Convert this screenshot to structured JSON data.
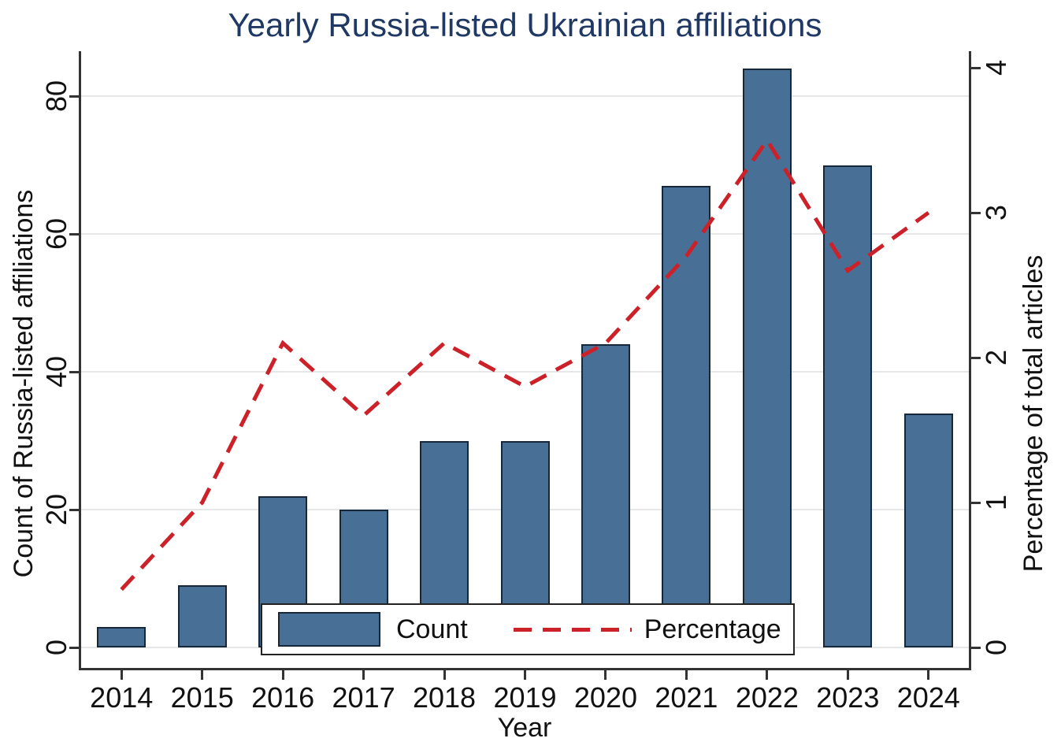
{
  "title": "Yearly Russia-listed Ukrainian affiliations",
  "chart_data": {
    "type": "bar",
    "title": "Yearly Russia-listed Ukrainian affiliations",
    "categories": [
      "2014",
      "2015",
      "2016",
      "2017",
      "2018",
      "2019",
      "2020",
      "2021",
      "2022",
      "2023",
      "2024"
    ],
    "series": [
      {
        "name": "Count",
        "type": "bar",
        "axis": "left",
        "values": [
          3,
          9,
          22,
          20,
          30,
          30,
          44,
          67,
          84,
          70,
          34
        ]
      },
      {
        "name": "Percentage",
        "type": "line",
        "line_style": "dashed",
        "axis": "right",
        "values": [
          0.4,
          1.0,
          2.1,
          1.6,
          2.1,
          1.8,
          2.1,
          2.7,
          3.5,
          2.6,
          3.0
        ]
      }
    ],
    "xlabel": "Year",
    "left_axis": {
      "label": "Count of Russia-listed affiliations",
      "ticks": [
        "0",
        "20",
        "40",
        "60",
        "80"
      ],
      "tick_values": [
        0,
        20,
        40,
        60,
        80
      ],
      "range": [
        0,
        86.5
      ]
    },
    "right_axis": {
      "label": "Percentage of total articles",
      "ticks": [
        "0",
        "1",
        "2",
        "3",
        "4"
      ],
      "tick_values": [
        0,
        1,
        2,
        3,
        4
      ],
      "range": [
        0,
        4.11
      ]
    },
    "grid": true,
    "legend_position": "bottom-inside",
    "legend": {
      "count_label": "Count",
      "percentage_label": "Percentage"
    }
  },
  "colors": {
    "bar_fill": "#487096",
    "bar_border": "#16273a",
    "line_red": "#cc2128",
    "title_navy": "#1f3864",
    "gridline": "#e5e7e9",
    "axis": "#333333",
    "text": "#111111",
    "background": "#ffffff"
  }
}
